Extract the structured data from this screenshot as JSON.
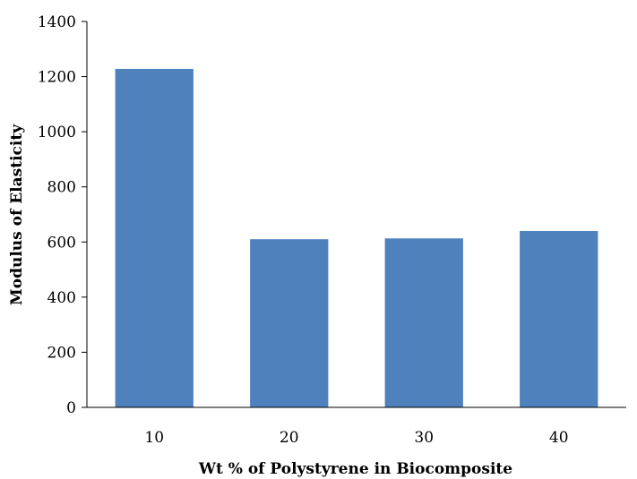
{
  "chart_data": {
    "type": "bar",
    "categories": [
      "10",
      "20",
      "30",
      "40"
    ],
    "values": [
      1228,
      610,
      613,
      640
    ],
    "title": "",
    "xlabel": "Wt % of Polystyrene in Biocomposite",
    "ylabel": "Modulus of Elasticity",
    "ylim": [
      0,
      1400
    ],
    "yticks": [
      "0",
      "200",
      "400",
      "600",
      "800",
      "1000",
      "1200",
      "1400"
    ],
    "bar_color": "#4F81BD",
    "grid": false,
    "legend": "none"
  }
}
